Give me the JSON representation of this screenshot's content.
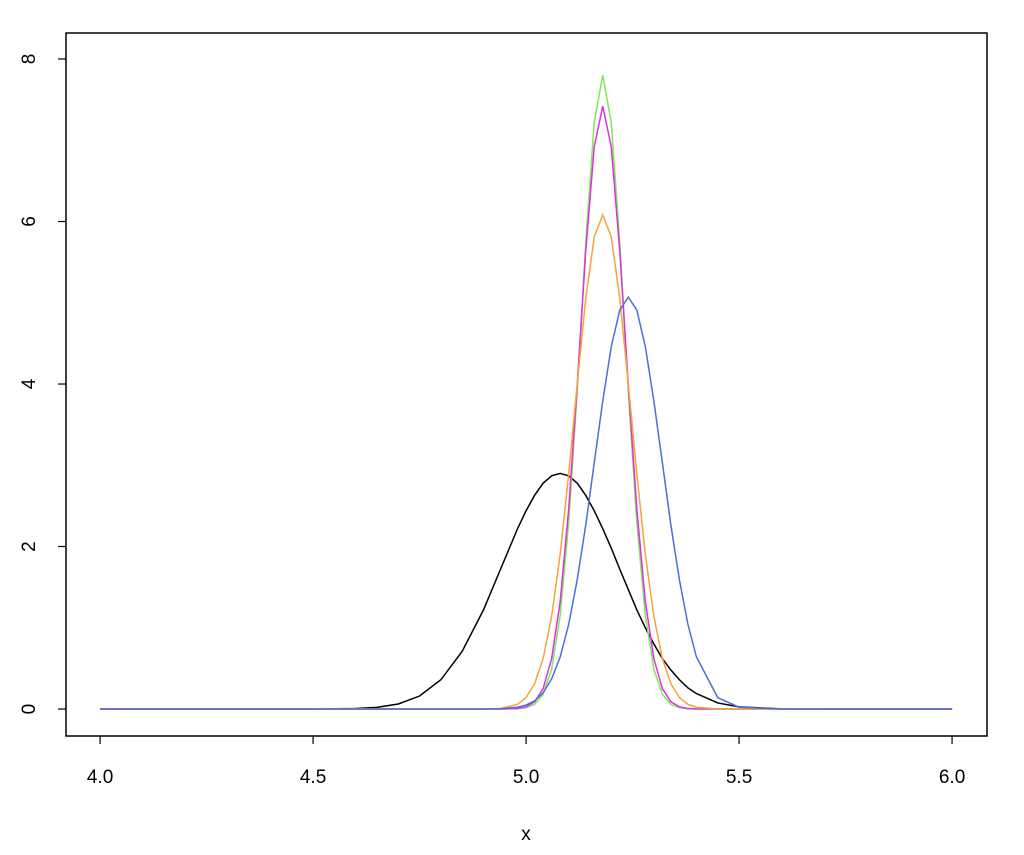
{
  "chart_data": {
    "type": "line",
    "xlabel": "x",
    "x": [
      4.0,
      4.2,
      4.4,
      4.5,
      4.6,
      4.65,
      4.7,
      4.75,
      4.8,
      4.85,
      4.9,
      4.94,
      4.98,
      5.0,
      5.02,
      5.04,
      5.06,
      5.08,
      5.1,
      5.12,
      5.14,
      5.16,
      5.18,
      5.2,
      5.22,
      5.24,
      5.26,
      5.28,
      5.3,
      5.32,
      5.34,
      5.36,
      5.38,
      5.4,
      5.45,
      5.5,
      5.6,
      5.7,
      5.8,
      6.0
    ],
    "series": [
      {
        "color": "#000000",
        "values": [
          0,
          0,
          0,
          0,
          0.006,
          0.021,
          0.062,
          0.16,
          0.36,
          0.71,
          1.22,
          1.72,
          2.22,
          2.44,
          2.63,
          2.78,
          2.87,
          2.9,
          2.87,
          2.78,
          2.63,
          2.44,
          2.22,
          1.98,
          1.72,
          1.47,
          1.22,
          1.0,
          0.8,
          0.62,
          0.48,
          0.36,
          0.26,
          0.19,
          0.075,
          0.026,
          0.002,
          0,
          0,
          0
        ]
      },
      {
        "color": "#7fe85a",
        "values": [
          0,
          0,
          0,
          0,
          0,
          0,
          0,
          0,
          0,
          0,
          0,
          0,
          0.004,
          0.016,
          0.058,
          0.18,
          0.49,
          1.15,
          2.29,
          3.91,
          5.74,
          7.22,
          7.8,
          7.22,
          5.74,
          3.91,
          2.29,
          1.15,
          0.49,
          0.18,
          0.058,
          0.016,
          0.004,
          0.001,
          0,
          0,
          0,
          0,
          0,
          0
        ]
      },
      {
        "color": "#e030e0",
        "values": [
          0,
          0,
          0,
          0,
          0,
          0,
          0,
          0,
          0,
          0,
          0,
          0,
          0.007,
          0.027,
          0.089,
          0.25,
          0.62,
          1.32,
          2.46,
          3.98,
          5.63,
          6.92,
          7.42,
          6.92,
          5.63,
          3.98,
          2.46,
          1.32,
          0.62,
          0.25,
          0.089,
          0.027,
          0.007,
          0.002,
          0,
          0,
          0,
          0,
          0,
          0
        ]
      },
      {
        "color": "#f5a33a",
        "values": [
          0,
          0,
          0,
          0,
          0,
          0,
          0,
          0,
          0,
          0,
          0,
          0.007,
          0.058,
          0.14,
          0.31,
          0.62,
          1.14,
          1.9,
          2.89,
          4.0,
          5.05,
          5.81,
          6.08,
          5.81,
          5.05,
          4.0,
          2.89,
          1.9,
          1.14,
          0.62,
          0.31,
          0.14,
          0.058,
          0.022,
          0.001,
          0,
          0,
          0,
          0,
          0
        ]
      },
      {
        "color": "#4a6ee0",
        "values": [
          0,
          0,
          0,
          0,
          0,
          0,
          0,
          0,
          0,
          0,
          0.001,
          0.004,
          0.022,
          0.049,
          0.1,
          0.2,
          0.37,
          0.64,
          1.04,
          1.59,
          2.26,
          3.03,
          3.79,
          4.46,
          4.91,
          5.07,
          4.91,
          4.46,
          3.79,
          3.03,
          2.26,
          1.59,
          1.04,
          0.64,
          0.14,
          0.022,
          0,
          0,
          0,
          0
        ]
      }
    ],
    "xlim": [
      3.92,
      6.082
    ],
    "ylim": [
      -0.332,
      8.32
    ],
    "xticks": [
      {
        "value": 4.0,
        "label": "4.0"
      },
      {
        "value": 4.5,
        "label": "4.5"
      },
      {
        "value": 5.0,
        "label": "5.0"
      },
      {
        "value": 5.5,
        "label": "5.5"
      },
      {
        "value": 6.0,
        "label": "6.0"
      }
    ],
    "yticks": [
      0,
      2,
      4,
      6,
      8
    ]
  }
}
